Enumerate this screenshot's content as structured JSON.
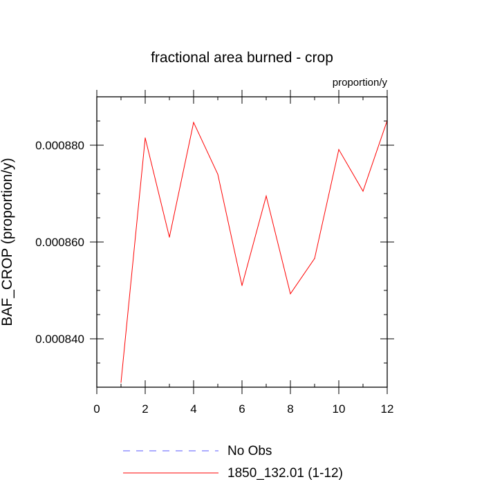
{
  "chart_data": {
    "type": "line",
    "title": "fractional area burned - crop",
    "units_label": "proportion/y",
    "xlabel": "",
    "ylabel": "BAF_CROP  (proportion/y)",
    "xlim": [
      0,
      12
    ],
    "ylim": [
      0.00083,
      0.00089
    ],
    "x_ticks": [
      0,
      2,
      4,
      6,
      8,
      10,
      12
    ],
    "x_tick_labels": [
      "0",
      "2",
      "4",
      "6",
      "8",
      "10",
      "12"
    ],
    "y_ticks": [
      0.00084,
      0.00086,
      0.00088
    ],
    "y_tick_labels": [
      "0.000840",
      "0.000860",
      "0.000880"
    ],
    "grid": false,
    "legend_position": "bottom",
    "series": [
      {
        "name": "1850_132.01 (1-12)",
        "color": "#ff0000",
        "style": "solid",
        "x": [
          1,
          2,
          3,
          4,
          5,
          6,
          7,
          8,
          9,
          10,
          11,
          12
        ],
        "values": [
          0.000831,
          0.0008815,
          0.000861,
          0.0008847,
          0.000874,
          0.000851,
          0.0008695,
          0.0008493,
          0.0008566,
          0.0008791,
          0.0008705,
          0.0008851
        ]
      }
    ],
    "legend": [
      {
        "label": "No Obs",
        "color": "#5a5aff",
        "style": "dashed"
      },
      {
        "label": "1850_132.01 (1-12)",
        "color": "#ff0000",
        "style": "solid"
      }
    ]
  }
}
